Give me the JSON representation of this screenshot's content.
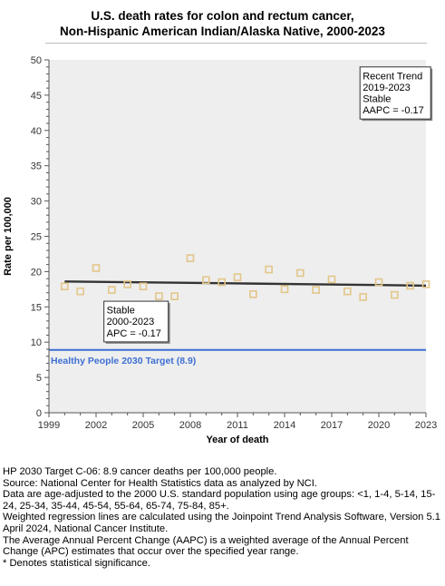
{
  "title_line1": "U.S. death rates for colon and rectum cancer,",
  "title_line2": "Non-Hispanic American Indian/Alaska Native,  2000-2023",
  "chart_data": {
    "type": "scatter",
    "title": "U.S. death rates for colon and rectum cancer, Non-Hispanic American Indian/Alaska Native,  2000-2023",
    "xlabel": "Year of death",
    "ylabel": "Rate per 100,000",
    "xlim": [
      1999,
      2023
    ],
    "ylim": [
      0,
      50
    ],
    "x_ticks": [
      1999,
      2002,
      2005,
      2008,
      2011,
      2014,
      2017,
      2020,
      2023
    ],
    "y_ticks": [
      0,
      5,
      10,
      15,
      20,
      25,
      30,
      35,
      40,
      45,
      50
    ],
    "grid": false,
    "background": "#eeeeee",
    "series": [
      {
        "kind": "observed",
        "marker": "open-square",
        "color": "#e3c68a",
        "x": [
          2000,
          2001,
          2002,
          2003,
          2004,
          2005,
          2006,
          2007,
          2008,
          2009,
          2010,
          2011,
          2012,
          2013,
          2014,
          2015,
          2016,
          2017,
          2018,
          2019,
          2020,
          2021,
          2022,
          2023
        ],
        "y": [
          17.9,
          17.2,
          20.5,
          17.4,
          18.2,
          17.9,
          16.5,
          16.5,
          21.9,
          18.8,
          18.5,
          19.2,
          16.8,
          20.3,
          17.5,
          19.8,
          17.4,
          18.9,
          17.2,
          16.4,
          18.5,
          16.7,
          18.0,
          18.2
        ]
      },
      {
        "kind": "regression",
        "color": "#333333",
        "x": [
          2000,
          2004,
          2008,
          2012,
          2016,
          2020,
          2023
        ],
        "y": [
          18.6,
          18.5,
          18.4,
          18.3,
          18.2,
          18.1,
          18.0
        ]
      }
    ],
    "target": {
      "value": 8.9,
      "label": "Healthy People 2030 Target (8.9)",
      "color": "#3d6fd4"
    },
    "annotations": [
      {
        "lines": [
          "Stable",
          "2000-2023",
          "APC = -0.17"
        ],
        "placement": "below-trend"
      },
      {
        "lines": [
          "Recent Trend",
          "2019-2023",
          "Stable",
          "AAPC = -0.17"
        ],
        "placement": "top-right"
      }
    ]
  },
  "footnotes": [
    "HP 2030 Target C-06: 8.9 cancer deaths per 100,000 people.",
    "Source: National Center for Health Statistics data as analyzed by NCI.",
    "Data are age-adjusted to the 2000 U.S. standard population using age groups: <1, 1-4, 5-14, 15-24, 25-34, 35-44, 45-54, 55-64, 65-74, 75-84, 85+.",
    "Weighted regression lines are calculated using the Joinpoint Trend Analysis Software, Version 5.1 April 2024, National Cancer Institute.",
    "The Average Annual Percent Change (AAPC) is a weighted average of the Annual Percent Change (APC) estimates that occur over the specified year range.",
    "* Denotes statistical significance."
  ]
}
